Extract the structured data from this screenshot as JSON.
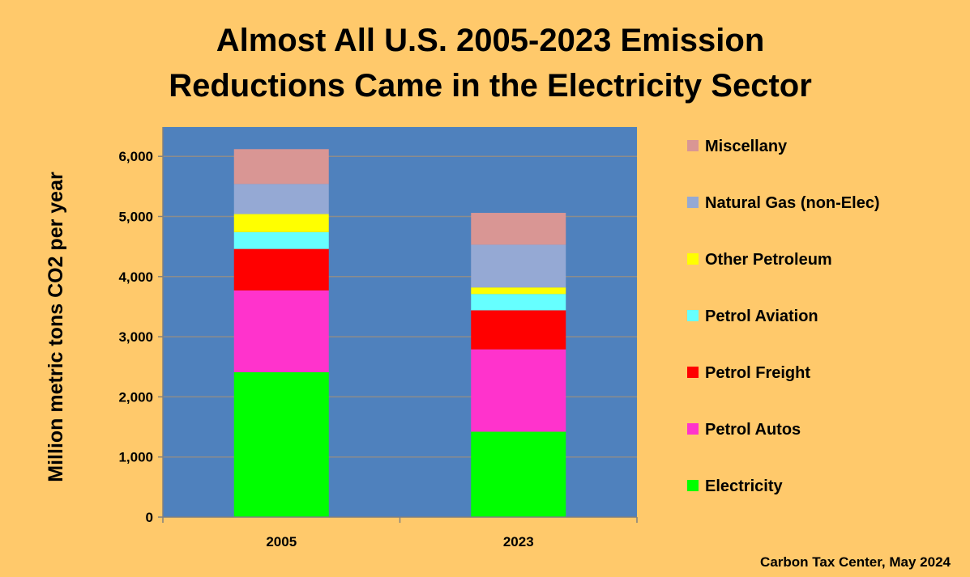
{
  "chart_data": {
    "type": "bar",
    "stacked": true,
    "title_line1": "Almost All U.S. 2005-2023 Emission",
    "title_line2": "Reductions Came in the Electricity Sector",
    "ylabel": "Million metric tons CO2 per year",
    "xlabel": "",
    "categories": [
      "2005",
      "2023"
    ],
    "ylim": [
      0,
      6500
    ],
    "yticks": [
      0,
      1000,
      2000,
      3000,
      4000,
      5000,
      6000
    ],
    "ytick_labels": [
      "0",
      "1,000",
      "2,000",
      "3,000",
      "4,000",
      "5,000",
      "6,000"
    ],
    "grid": true,
    "legend_position": "right",
    "plot_background": "#4F81BD",
    "series": [
      {
        "name": "Electricity",
        "color": "#00FF00",
        "values": [
          2410,
          1420
        ]
      },
      {
        "name": "Petrol Autos",
        "color": "#FF33CC",
        "values": [
          1360,
          1370
        ]
      },
      {
        "name": "Petrol Freight",
        "color": "#FF0000",
        "values": [
          690,
          650
        ]
      },
      {
        "name": "Petrol Aviation",
        "color": "#66FFFF",
        "values": [
          280,
          270
        ]
      },
      {
        "name": "Other Petroleum",
        "color": "#FFFF00",
        "values": [
          300,
          110
        ]
      },
      {
        "name": "Natural Gas (non-Elec)",
        "color": "#95A9D4",
        "values": [
          500,
          710
        ]
      },
      {
        "name": "Miscellany",
        "color": "#D99694",
        "values": [
          580,
          530
        ]
      }
    ]
  },
  "credit": "Carbon Tax Center, May 2024"
}
